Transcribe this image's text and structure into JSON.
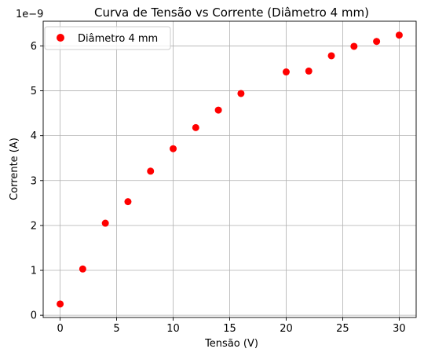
{
  "chart_data": {
    "type": "scatter",
    "title": "Curva de Tensão vs Corrente (Diâmetro 4 mm)",
    "xlabel": "Tensão (V)",
    "ylabel": "Corrente (A)",
    "y_offset_label": "1e−9",
    "xlim": [
      -1.5,
      31.5
    ],
    "ylim": [
      -0.05,
      6.55
    ],
    "y_scale_factor": 1e-09,
    "x_ticks": [
      0,
      5,
      10,
      15,
      20,
      25,
      30
    ],
    "x_tick_labels": [
      "0",
      "5",
      "10",
      "15",
      "20",
      "25",
      "30"
    ],
    "y_ticks": [
      0,
      1,
      2,
      3,
      4,
      5,
      6
    ],
    "y_tick_labels": [
      "0",
      "1",
      "2",
      "3",
      "4",
      "5",
      "6"
    ],
    "grid": true,
    "legend_position": "top-left",
    "series": [
      {
        "name": "Diâmetro 4 mm",
        "color": "#ff0000",
        "marker": "circle",
        "x": [
          0,
          2,
          4,
          6,
          8,
          10,
          12,
          14,
          16,
          20,
          22,
          24,
          26,
          28,
          30
        ],
        "y": [
          0.25,
          1.03,
          2.05,
          2.53,
          3.21,
          3.71,
          4.18,
          4.57,
          4.94,
          5.42,
          5.44,
          5.78,
          5.99,
          6.1,
          6.24
        ]
      }
    ]
  }
}
